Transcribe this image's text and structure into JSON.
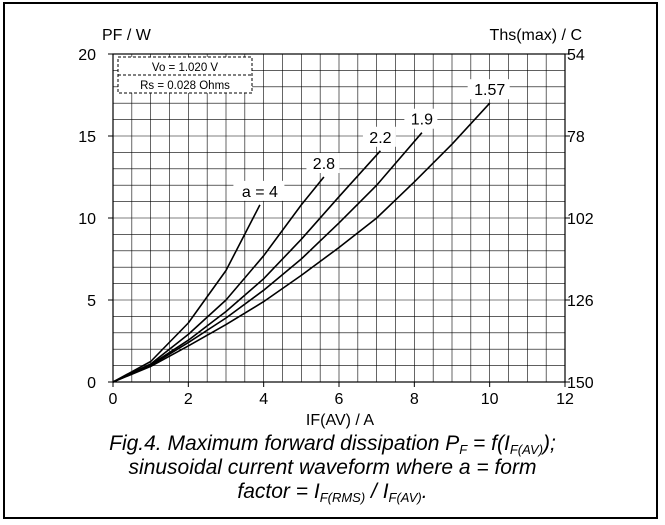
{
  "chart_data": {
    "type": "line",
    "y_title": "PF / W",
    "y2_title": "Ths(max) / C",
    "x_title": "IF(AV) / A",
    "xlim": [
      0,
      12
    ],
    "ylim": [
      0,
      20
    ],
    "x_ticks": [
      0,
      2,
      4,
      6,
      8,
      10,
      12
    ],
    "y_ticks": [
      0,
      5,
      10,
      15,
      20
    ],
    "y2_ticks": [
      {
        "value": 54,
        "at_pf": 20
      },
      {
        "value": 78,
        "at_pf": 15
      },
      {
        "value": 102,
        "at_pf": 10
      },
      {
        "value": 126,
        "at_pf": 5
      },
      {
        "value": 150,
        "at_pf": 0
      }
    ],
    "grid": true,
    "annotation": {
      "lines": [
        "Vo = 1.020 V",
        "Rs = 0.028 Ohms"
      ]
    },
    "series": [
      {
        "name": "a = 4",
        "x": [
          0,
          1,
          2,
          3,
          3.9
        ],
        "y": [
          0,
          1.25,
          3.6,
          6.8,
          10.8
        ]
      },
      {
        "name": "2.8",
        "x": [
          0,
          1,
          2,
          3,
          4,
          5,
          5.6
        ],
        "y": [
          0,
          1.1,
          2.9,
          5.0,
          7.7,
          10.8,
          12.5
        ]
      },
      {
        "name": "2.2",
        "x": [
          0,
          1,
          2,
          3,
          4,
          5,
          6,
          7.1
        ],
        "y": [
          0,
          1.05,
          2.55,
          4.3,
          6.3,
          8.7,
          11.3,
          14.1
        ]
      },
      {
        "name": "1.9",
        "x": [
          0,
          1,
          2,
          3,
          4,
          5,
          6,
          7,
          8.2
        ],
        "y": [
          0,
          1.0,
          2.4,
          3.9,
          5.6,
          7.5,
          9.7,
          12.0,
          15.2
        ]
      },
      {
        "name": "1.57",
        "x": [
          0,
          1,
          2,
          3,
          4,
          5,
          6,
          7,
          8,
          9,
          10
        ],
        "y": [
          0,
          0.95,
          2.2,
          3.5,
          4.9,
          6.5,
          8.2,
          10.0,
          12.2,
          14.5,
          17.0
        ]
      }
    ]
  },
  "caption": {
    "line1_a": "Fig.4.   Maximum forward dissipation P",
    "line1_sub1": "F",
    "line1_b": " = f(I",
    "line1_sub2": "F(AV)",
    "line1_c": ");",
    "line2": "sinusoidal current waveform where a = form",
    "line3_a": "factor = I",
    "line3_sub1": "F(RMS)",
    "line3_b": " / I",
    "line3_sub2": "F(AV)",
    "line3_c": "."
  }
}
